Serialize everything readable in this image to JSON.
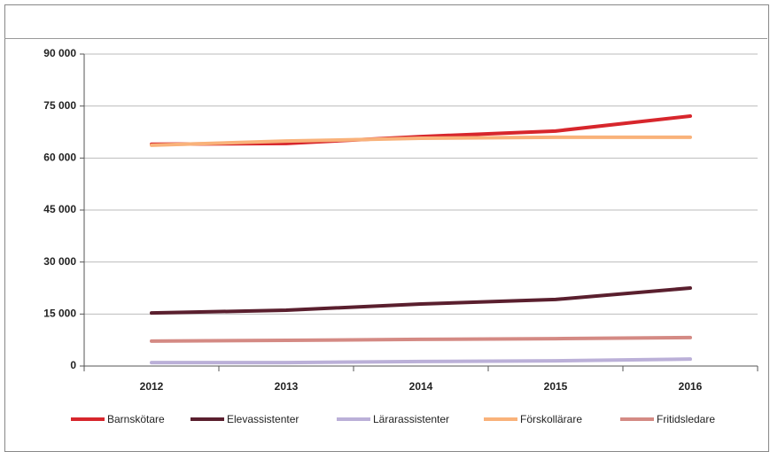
{
  "chart_data": {
    "type": "line",
    "categories": [
      "2012",
      "2013",
      "2014",
      "2015",
      "2016"
    ],
    "series": [
      {
        "name": "Barnskötare",
        "color": "#d7262c",
        "values": [
          64000,
          64200,
          66200,
          67800,
          72100
        ]
      },
      {
        "name": "Elevassistenter",
        "color": "#5a1f2e",
        "values": [
          15300,
          16100,
          17900,
          19200,
          22500
        ]
      },
      {
        "name": "Lärarassistenter",
        "color": "#bbb0d8",
        "values": [
          1000,
          1000,
          1300,
          1500,
          2000
        ]
      },
      {
        "name": "Förskollärare",
        "color": "#f9b27a",
        "values": [
          63700,
          64900,
          65700,
          66000,
          66000
        ]
      },
      {
        "name": "Fritidsledare",
        "color": "#d48a84",
        "values": [
          7200,
          7400,
          7700,
          7900,
          8200
        ]
      }
    ],
    "ylim": [
      0,
      90000
    ],
    "yticks": [
      0,
      {
        "value": 15000,
        "label": "15 000"
      },
      {
        "value": 30000,
        "label": "30 000"
      },
      {
        "value": 45000,
        "label": "45 000"
      },
      {
        "value": 60000,
        "label": "60 000"
      },
      {
        "value": 75000,
        "label": "75 000"
      },
      {
        "value": 90000,
        "label": "90 000"
      }
    ],
    "grid": true,
    "legend": "bottom"
  }
}
